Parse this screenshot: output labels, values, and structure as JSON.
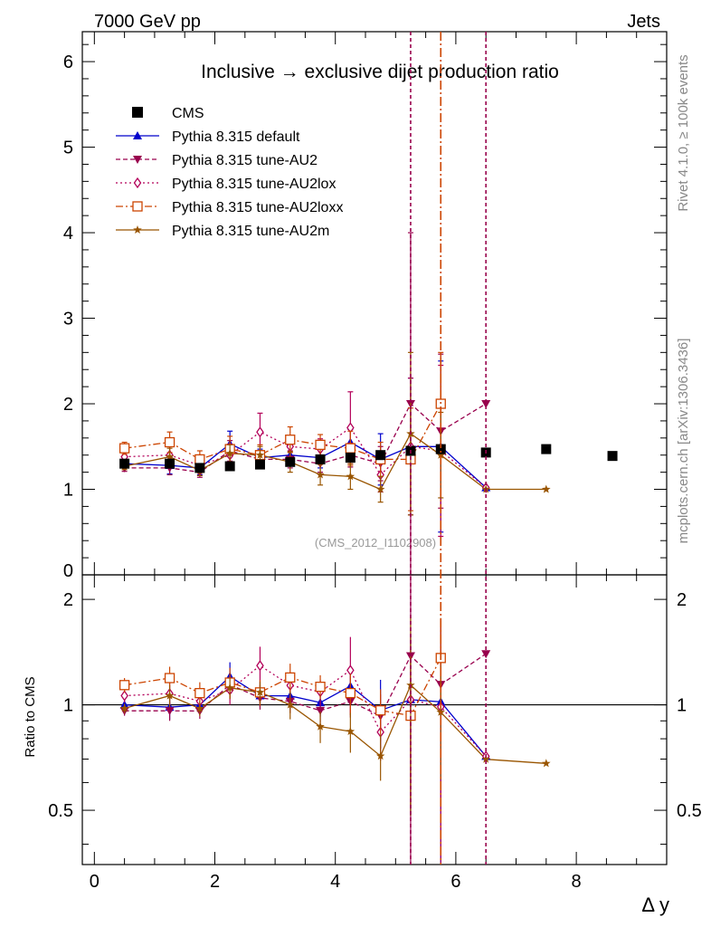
{
  "header": {
    "left": "7000 GeV pp",
    "right": "Jets",
    "side_top": "Rivet 4.1.0, ≥ 100k events",
    "side_bottom": "mcplots.cern.ch [arXiv:1306.3436]",
    "watermark": "(CMS_2012_I1102908)"
  },
  "chart_data": {
    "type": "scatter",
    "title": "Inclusive → exclusive dijet production ratio",
    "xlabel": "Δ y",
    "ylabel_ratio": "Ratio to CMS",
    "xlim": [
      -0.2,
      9.5
    ],
    "ylim_main": [
      0,
      6.35
    ],
    "ylim_ratio": [
      0.35,
      2.35
    ],
    "main_yticks": [
      "0",
      "1",
      "2",
      "3",
      "4",
      "5",
      "6"
    ],
    "ratio_yticks": [
      "0.5",
      "1",
      "2"
    ],
    "xticks": [
      "0",
      "2",
      "4",
      "6",
      "8"
    ],
    "data": {
      "name": "CMS",
      "color": "#000000",
      "x": [
        0.5,
        1.25,
        1.75,
        2.25,
        2.75,
        3.25,
        3.75,
        4.25,
        4.75,
        5.25,
        5.75,
        6.5,
        7.5,
        8.6
      ],
      "y": [
        1.3,
        1.3,
        1.25,
        1.27,
        1.29,
        1.32,
        1.35,
        1.37,
        1.4,
        1.45,
        1.47,
        1.43,
        1.47,
        1.39
      ]
    },
    "series": [
      {
        "name": "Pythia 8.315 default",
        "color": "#0000cc",
        "marker": "triangle-up",
        "dash": "",
        "x": [
          0.5,
          1.25,
          1.75,
          2.25,
          2.75,
          3.25,
          3.75,
          4.25,
          4.75,
          5.25,
          5.75,
          6.5
        ],
        "y": [
          1.3,
          1.28,
          1.25,
          1.53,
          1.37,
          1.4,
          1.37,
          1.55,
          1.35,
          1.5,
          1.5,
          1.02
        ],
        "err": [
          0.05,
          0.1,
          0.08,
          0.15,
          0.1,
          0.12,
          0.12,
          0.15,
          0.3,
          0.8,
          1.0,
          0.0
        ]
      },
      {
        "name": "Pythia 8.315 tune-AU2",
        "color": "#99004d",
        "marker": "triangle-down",
        "dash": "5,3",
        "x": [
          0.5,
          1.25,
          1.75,
          2.25,
          2.75,
          3.25,
          3.75,
          4.25,
          4.75,
          5.25,
          5.75,
          6.5
        ],
        "y": [
          1.25,
          1.25,
          1.2,
          1.45,
          1.35,
          1.35,
          1.3,
          1.4,
          1.3,
          2.0,
          1.68,
          2.0
        ],
        "err": [
          0.04,
          0.08,
          0.06,
          0.12,
          0.1,
          0.1,
          0.1,
          0.14,
          0.2,
          2.0,
          0.9,
          0.0
        ]
      },
      {
        "name": "Pythia 8.315 tune-AU2lox",
        "color": "#b30059",
        "marker": "diamond",
        "dash": "2,3",
        "x": [
          0.5,
          1.25,
          1.75,
          2.25,
          2.75,
          3.25,
          3.75,
          4.25,
          4.75,
          5.25,
          5.75,
          6.5
        ],
        "y": [
          1.38,
          1.4,
          1.28,
          1.4,
          1.67,
          1.5,
          1.47,
          1.72,
          1.17,
          1.5,
          1.45,
          1.02
        ],
        "err": [
          0.06,
          0.1,
          0.08,
          0.13,
          0.22,
          0.12,
          0.12,
          0.42,
          0.2,
          0.8,
          1.0,
          0.0
        ]
      },
      {
        "name": "Pythia 8.315 tune-AU2loxx",
        "color": "#cc4400",
        "marker": "square-open",
        "dash": "8,3,2,3",
        "x": [
          0.5,
          1.25,
          1.75,
          2.25,
          2.75,
          3.25,
          3.75,
          4.25,
          4.75,
          5.25,
          5.75
        ],
        "y": [
          1.48,
          1.55,
          1.35,
          1.47,
          1.4,
          1.58,
          1.52,
          1.48,
          1.35,
          1.35,
          2.0
        ],
        "err": [
          0.07,
          0.12,
          0.1,
          0.15,
          0.12,
          0.15,
          0.12,
          0.2,
          0.2,
          0.6,
          0.6
        ]
      },
      {
        "name": "Pythia 8.315 tune-AU2m",
        "color": "#995500",
        "marker": "star",
        "dash": "",
        "x": [
          0.5,
          1.25,
          1.75,
          2.25,
          2.75,
          3.25,
          3.75,
          4.25,
          4.75,
          5.25,
          5.75,
          6.5,
          7.5
        ],
        "y": [
          1.27,
          1.38,
          1.22,
          1.42,
          1.4,
          1.32,
          1.17,
          1.15,
          1.0,
          1.65,
          1.4,
          1.0,
          1.0
        ],
        "err": [
          0.04,
          0.1,
          0.06,
          0.1,
          0.1,
          0.12,
          0.12,
          0.15,
          0.15,
          0.95,
          0.5,
          0.0,
          0.0
        ]
      }
    ],
    "vertical_lines": [
      {
        "x": 5.25,
        "color": "#99004d",
        "dash": "4,3"
      },
      {
        "x": 5.75,
        "color": "#cc4400",
        "dash": "10,3,2,3"
      },
      {
        "x": 6.5,
        "color": "#99004d",
        "dash": "4,3"
      }
    ]
  }
}
